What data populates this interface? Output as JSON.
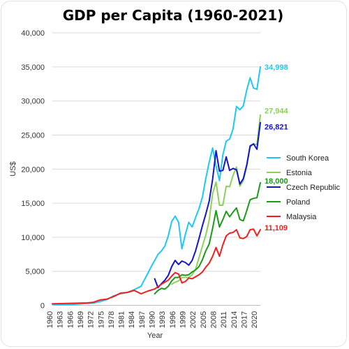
{
  "chart_data": {
    "type": "line",
    "title": "GDP per Capita (1960-2021)",
    "xlabel": "Year",
    "ylabel": "US$",
    "ylim": [
      0,
      40000
    ],
    "xlim": [
      1960,
      2021
    ],
    "yticks": [
      0,
      5000,
      10000,
      15000,
      20000,
      25000,
      30000,
      35000,
      40000
    ],
    "ytick_labels": [
      "0",
      "5,000",
      "10,000",
      "15,000",
      "20,000",
      "25,000",
      "30,000",
      "35,000",
      "40,000"
    ],
    "xticks": [
      1960,
      1963,
      1966,
      1969,
      1972,
      1975,
      1978,
      1981,
      1984,
      1987,
      1990,
      1993,
      1996,
      1999,
      2002,
      2005,
      2008,
      2011,
      2014,
      2017,
      2020
    ],
    "xtick_labels": [
      "1960",
      "1963",
      "1966",
      "1969",
      "1972",
      "1975",
      "1978",
      "1981",
      "1984",
      "1987",
      "1990",
      "1993",
      "1996",
      "1999",
      "2002",
      "2005",
      "2008",
      "2011",
      "2014",
      "2017",
      "2020"
    ],
    "grid": "horizontal",
    "legend_position": "right",
    "series": [
      {
        "name": "South Korea",
        "color": "#1ec8f0",
        "end_label": "34,998",
        "points": [
          [
            1960,
            160
          ],
          [
            1962,
            110
          ],
          [
            1964,
            120
          ],
          [
            1966,
            140
          ],
          [
            1968,
            200
          ],
          [
            1970,
            280
          ],
          [
            1972,
            330
          ],
          [
            1974,
            560
          ],
          [
            1976,
            850
          ],
          [
            1978,
            1400
          ],
          [
            1980,
            1700
          ],
          [
            1982,
            1900
          ],
          [
            1984,
            2300
          ],
          [
            1986,
            2800
          ],
          [
            1988,
            4700
          ],
          [
            1989,
            5700
          ],
          [
            1990,
            6600
          ],
          [
            1991,
            7500
          ],
          [
            1992,
            8000
          ],
          [
            1993,
            8700
          ],
          [
            1994,
            10200
          ],
          [
            1995,
            12300
          ],
          [
            1996,
            13100
          ],
          [
            1997,
            12200
          ],
          [
            1998,
            8300
          ],
          [
            1999,
            10400
          ],
          [
            2000,
            12200
          ],
          [
            2001,
            11500
          ],
          [
            2002,
            12900
          ],
          [
            2003,
            14200
          ],
          [
            2004,
            15900
          ],
          [
            2005,
            18600
          ],
          [
            2006,
            21000
          ],
          [
            2007,
            23100
          ],
          [
            2008,
            20500
          ],
          [
            2009,
            18300
          ],
          [
            2010,
            22100
          ],
          [
            2011,
            24100
          ],
          [
            2012,
            24400
          ],
          [
            2013,
            25900
          ],
          [
            2014,
            29200
          ],
          [
            2015,
            28700
          ],
          [
            2016,
            29300
          ],
          [
            2017,
            31600
          ],
          [
            2018,
            33400
          ],
          [
            2019,
            31900
          ],
          [
            2020,
            31700
          ],
          [
            2021,
            34998
          ]
        ]
      },
      {
        "name": "Estonia",
        "color": "#8cd15a",
        "end_label": "27,944",
        "points": [
          [
            1995,
            3100
          ],
          [
            1996,
            3400
          ],
          [
            1997,
            3600
          ],
          [
            1998,
            4100
          ],
          [
            1999,
            4100
          ],
          [
            2000,
            4100
          ],
          [
            2001,
            4500
          ],
          [
            2002,
            5300
          ],
          [
            2003,
            7000
          ],
          [
            2004,
            8700
          ],
          [
            2005,
            10300
          ],
          [
            2006,
            12500
          ],
          [
            2007,
            16400
          ],
          [
            2008,
            18100
          ],
          [
            2009,
            14700
          ],
          [
            2010,
            14700
          ],
          [
            2011,
            17500
          ],
          [
            2012,
            17400
          ],
          [
            2013,
            19100
          ],
          [
            2014,
            20300
          ],
          [
            2015,
            17500
          ],
          [
            2016,
            18300
          ],
          [
            2017,
            20400
          ],
          [
            2018,
            23200
          ],
          [
            2019,
            23700
          ],
          [
            2020,
            23600
          ],
          [
            2021,
            27944
          ]
        ]
      },
      {
        "name": "Czech Republic",
        "color": "#1414c8",
        "end_label": "26,821",
        "points": [
          [
            1990,
            3900
          ],
          [
            1991,
            2600
          ],
          [
            1992,
            3200
          ],
          [
            1993,
            3700
          ],
          [
            1994,
            4400
          ],
          [
            1995,
            5700
          ],
          [
            1996,
            6600
          ],
          [
            1997,
            6000
          ],
          [
            1998,
            6500
          ],
          [
            1999,
            6300
          ],
          [
            2000,
            5900
          ],
          [
            2001,
            6600
          ],
          [
            2002,
            8000
          ],
          [
            2003,
            9800
          ],
          [
            2004,
            11700
          ],
          [
            2005,
            13400
          ],
          [
            2006,
            15300
          ],
          [
            2007,
            18500
          ],
          [
            2008,
            22700
          ],
          [
            2009,
            19700
          ],
          [
            2010,
            19800
          ],
          [
            2011,
            21800
          ],
          [
            2012,
            19800
          ],
          [
            2013,
            20100
          ],
          [
            2014,
            19900
          ],
          [
            2015,
            17800
          ],
          [
            2016,
            18600
          ],
          [
            2017,
            20600
          ],
          [
            2018,
            23400
          ],
          [
            2019,
            23700
          ],
          [
            2020,
            22900
          ],
          [
            2021,
            26821
          ]
        ]
      },
      {
        "name": "Poland",
        "color": "#1a9a1a",
        "end_label": "18,000",
        "points": [
          [
            1990,
            1700
          ],
          [
            1991,
            2200
          ],
          [
            1992,
            2500
          ],
          [
            1993,
            2400
          ],
          [
            1994,
            2800
          ],
          [
            1995,
            3600
          ],
          [
            1996,
            4100
          ],
          [
            1997,
            4100
          ],
          [
            1998,
            4500
          ],
          [
            1999,
            4400
          ],
          [
            2000,
            4500
          ],
          [
            2001,
            4900
          ],
          [
            2002,
            5200
          ],
          [
            2003,
            5700
          ],
          [
            2004,
            6700
          ],
          [
            2005,
            8000
          ],
          [
            2006,
            9000
          ],
          [
            2007,
            11300
          ],
          [
            2008,
            13900
          ],
          [
            2009,
            11500
          ],
          [
            2010,
            12600
          ],
          [
            2011,
            13800
          ],
          [
            2012,
            13000
          ],
          [
            2013,
            13700
          ],
          [
            2014,
            14300
          ],
          [
            2015,
            12600
          ],
          [
            2016,
            12400
          ],
          [
            2017,
            13900
          ],
          [
            2018,
            15500
          ],
          [
            2019,
            15700
          ],
          [
            2020,
            15800
          ],
          [
            2021,
            18000
          ]
        ]
      },
      {
        "name": "Malaysia",
        "color": "#f02020",
        "end_label": "11,109",
        "points": [
          [
            1960,
            240
          ],
          [
            1964,
            290
          ],
          [
            1968,
            330
          ],
          [
            1970,
            360
          ],
          [
            1972,
            450
          ],
          [
            1974,
            800
          ],
          [
            1976,
            920
          ],
          [
            1978,
            1300
          ],
          [
            1980,
            1800
          ],
          [
            1982,
            1900
          ],
          [
            1984,
            2200
          ],
          [
            1986,
            1700
          ],
          [
            1988,
            2100
          ],
          [
            1990,
            2400
          ],
          [
            1992,
            3100
          ],
          [
            1994,
            3700
          ],
          [
            1995,
            4300
          ],
          [
            1996,
            4800
          ],
          [
            1997,
            4600
          ],
          [
            1998,
            3300
          ],
          [
            1999,
            3500
          ],
          [
            2000,
            4000
          ],
          [
            2001,
            3900
          ],
          [
            2002,
            4200
          ],
          [
            2003,
            4500
          ],
          [
            2004,
            4900
          ],
          [
            2005,
            5600
          ],
          [
            2006,
            6200
          ],
          [
            2007,
            7200
          ],
          [
            2008,
            8500
          ],
          [
            2009,
            7200
          ],
          [
            2010,
            8900
          ],
          [
            2011,
            10200
          ],
          [
            2012,
            10600
          ],
          [
            2013,
            10700
          ],
          [
            2014,
            11100
          ],
          [
            2015,
            9900
          ],
          [
            2016,
            9800
          ],
          [
            2017,
            10100
          ],
          [
            2018,
            11100
          ],
          [
            2019,
            11200
          ],
          [
            2020,
            10200
          ],
          [
            2021,
            11109
          ]
        ]
      }
    ]
  }
}
